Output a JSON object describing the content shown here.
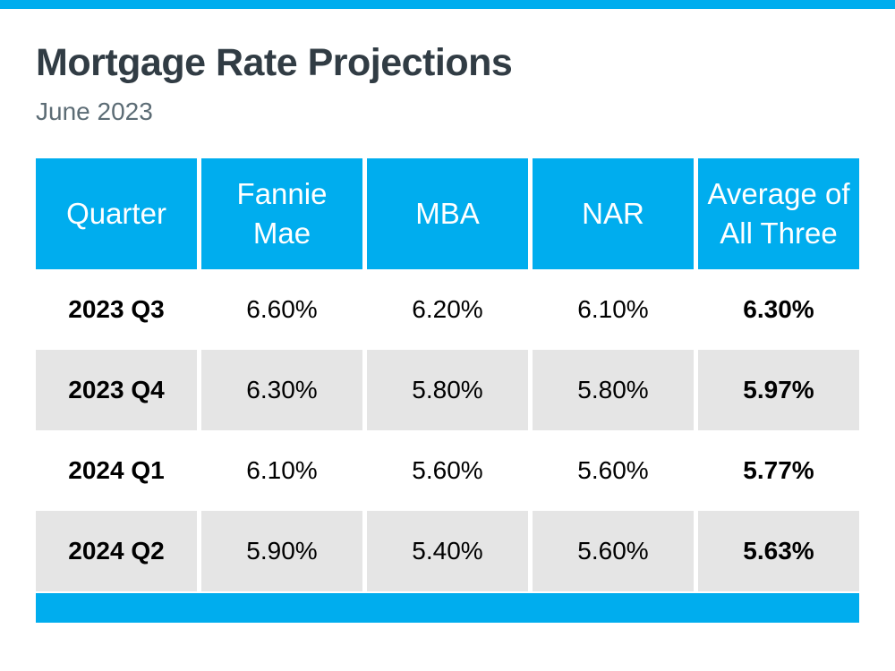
{
  "page": {
    "title": "Mortgage Rate Projections",
    "subtitle": "June 2023"
  },
  "colors": {
    "accent_blue": "#00ADEE",
    "alt_row_gray": "#E5E5E5",
    "title_text": "#313C44",
    "subtitle_text": "#5C6C75",
    "header_text": "#FFFFFF",
    "body_text": "#000000"
  },
  "chart_data": {
    "type": "table",
    "title": "Mortgage Rate Projections",
    "subtitle": "June 2023",
    "columns": [
      "Quarter",
      "Fannie Mae",
      "MBA",
      "NAR",
      "Average of All Three"
    ],
    "rows": [
      [
        "2023 Q3",
        "6.60%",
        "6.20%",
        "6.10%",
        "6.30%"
      ],
      [
        "2023 Q4",
        "6.30%",
        "5.80%",
        "5.80%",
        "5.97%"
      ],
      [
        "2024 Q1",
        "6.10%",
        "5.60%",
        "5.60%",
        "5.77%"
      ],
      [
        "2024 Q2",
        "5.90%",
        "5.40%",
        "5.60%",
        "5.63%"
      ]
    ]
  }
}
